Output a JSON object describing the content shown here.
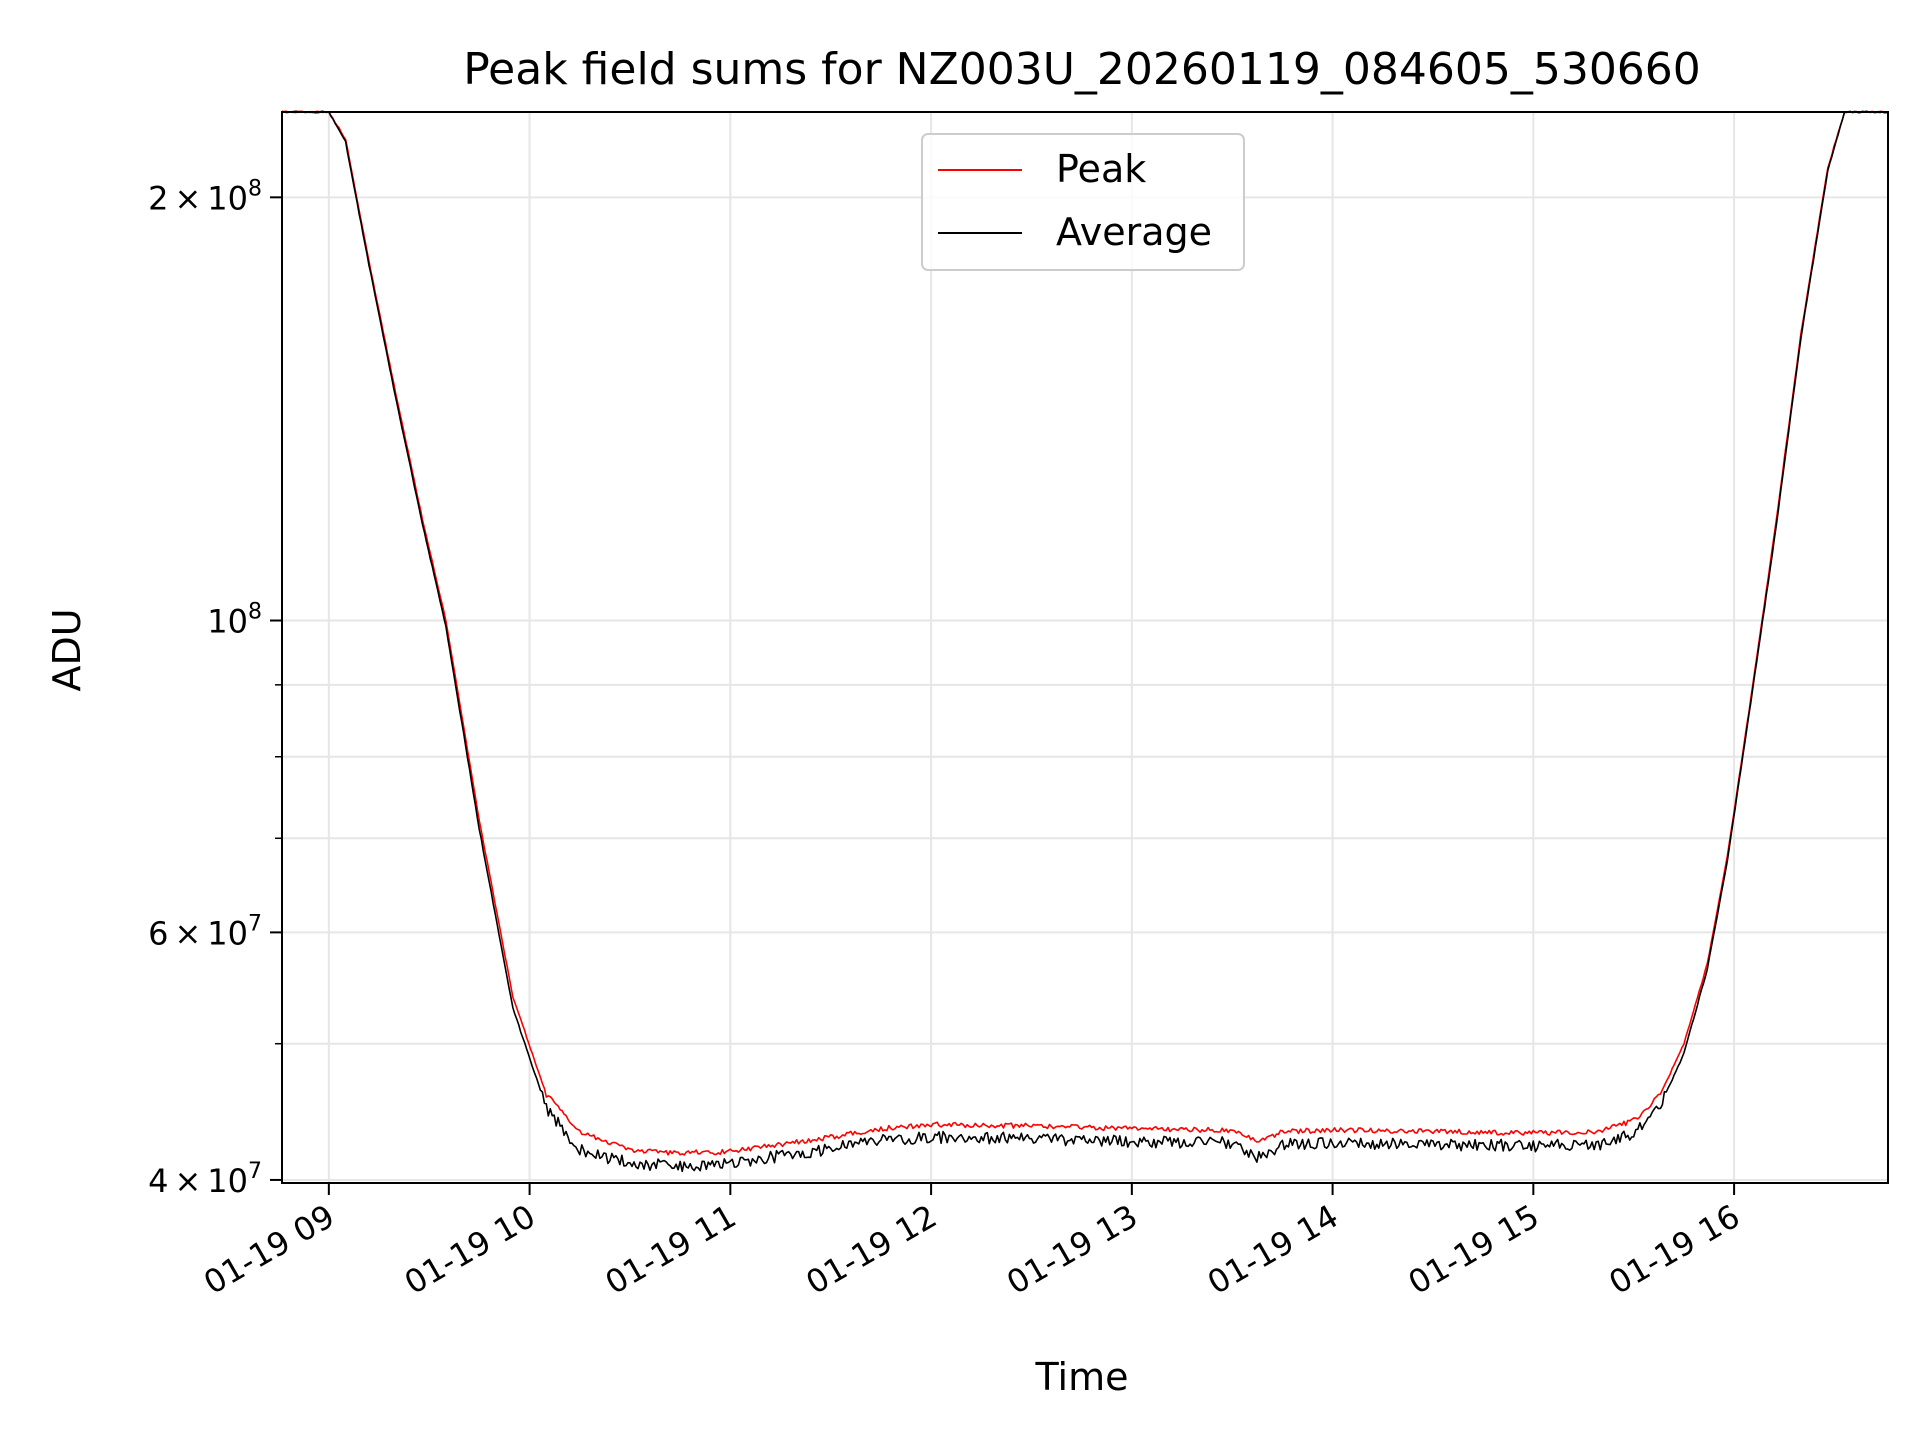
{
  "chart_data": {
    "type": "line",
    "title": "Peak field sums for NZ003U_20260119_084605_530660",
    "xlabel": "Time",
    "ylabel": "ADU",
    "yscale": "log",
    "grid": true,
    "legend_placement": "top-center",
    "xlim": [
      "2026-01-19T08:46",
      "2026-01-19T16:46"
    ],
    "ylim": [
      39800000,
      230000000
    ],
    "x_ticks": [
      {
        "value": "2026-01-19T09:00",
        "label": "01-19 09"
      },
      {
        "value": "2026-01-19T10:00",
        "label": "01-19 10"
      },
      {
        "value": "2026-01-19T11:00",
        "label": "01-19 11"
      },
      {
        "value": "2026-01-19T12:00",
        "label": "01-19 12"
      },
      {
        "value": "2026-01-19T13:00",
        "label": "01-19 13"
      },
      {
        "value": "2026-01-19T14:00",
        "label": "01-19 14"
      },
      {
        "value": "2026-01-19T15:00",
        "label": "01-19 15"
      },
      {
        "value": "2026-01-19T16:00",
        "label": "01-19 16"
      }
    ],
    "y_major_ticks": [
      {
        "value": 40000000,
        "mantissa": "4",
        "exp": "7"
      },
      {
        "value": 60000000,
        "mantissa": "6",
        "exp": "7"
      },
      {
        "value": 100000000,
        "mantissa": "",
        "exp": "8"
      },
      {
        "value": 200000000,
        "mantissa": "2",
        "exp": "8"
      }
    ],
    "y_minor_ticks": [
      50000000,
      70000000,
      80000000,
      90000000
    ],
    "series": [
      {
        "name": "Peak",
        "color": "#ff0000",
        "points": [
          [
            "2026-01-19T08:46",
            230000000
          ],
          [
            "2026-01-19T09:00",
            230000000
          ],
          [
            "2026-01-19T09:05",
            220000000
          ],
          [
            "2026-01-19T09:12",
            180000000
          ],
          [
            "2026-01-19T09:20",
            145000000
          ],
          [
            "2026-01-19T09:28",
            118000000
          ],
          [
            "2026-01-19T09:35",
            100000000
          ],
          [
            "2026-01-19T09:45",
            72000000
          ],
          [
            "2026-01-19T09:55",
            54000000
          ],
          [
            "2026-01-19T10:05",
            46000000
          ],
          [
            "2026-01-19T10:15",
            43300000
          ],
          [
            "2026-01-19T10:30",
            42000000
          ],
          [
            "2026-01-19T10:45",
            41800000
          ],
          [
            "2026-01-19T11:00",
            41900000
          ],
          [
            "2026-01-19T11:15",
            42400000
          ],
          [
            "2026-01-19T11:30",
            42900000
          ],
          [
            "2026-01-19T11:45",
            43500000
          ],
          [
            "2026-01-19T12:00",
            43800000
          ],
          [
            "2026-01-19T12:30",
            43700000
          ],
          [
            "2026-01-19T13:00",
            43500000
          ],
          [
            "2026-01-19T13:30",
            43400000
          ],
          [
            "2026-01-19T13:38",
            42600000
          ],
          [
            "2026-01-19T13:45",
            43300000
          ],
          [
            "2026-01-19T14:00",
            43400000
          ],
          [
            "2026-01-19T14:30",
            43300000
          ],
          [
            "2026-01-19T15:00",
            43200000
          ],
          [
            "2026-01-19T15:20",
            43300000
          ],
          [
            "2026-01-19T15:30",
            44100000
          ],
          [
            "2026-01-19T15:38",
            46000000
          ],
          [
            "2026-01-19T15:45",
            50000000
          ],
          [
            "2026-01-19T15:52",
            57000000
          ],
          [
            "2026-01-19T15:58",
            68000000
          ],
          [
            "2026-01-19T16:05",
            88000000
          ],
          [
            "2026-01-19T16:12",
            115000000
          ],
          [
            "2026-01-19T16:20",
            160000000
          ],
          [
            "2026-01-19T16:28",
            210000000
          ],
          [
            "2026-01-19T16:33",
            230000000
          ],
          [
            "2026-01-19T16:46",
            230000000
          ]
        ]
      },
      {
        "name": "Average",
        "color": "#000000",
        "points": [
          [
            "2026-01-19T08:46",
            230000000
          ],
          [
            "2026-01-19T09:00",
            230000000
          ],
          [
            "2026-01-19T09:05",
            219000000
          ],
          [
            "2026-01-19T09:12",
            179000000
          ],
          [
            "2026-01-19T09:20",
            144000000
          ],
          [
            "2026-01-19T09:28",
            117000000
          ],
          [
            "2026-01-19T09:35",
            99000000
          ],
          [
            "2026-01-19T09:45",
            71000000
          ],
          [
            "2026-01-19T09:55",
            53000000
          ],
          [
            "2026-01-19T10:05",
            45000000
          ],
          [
            "2026-01-19T10:15",
            42000000
          ],
          [
            "2026-01-19T10:30",
            41100000
          ],
          [
            "2026-01-19T10:45",
            40900000
          ],
          [
            "2026-01-19T11:00",
            41100000
          ],
          [
            "2026-01-19T11:15",
            41600000
          ],
          [
            "2026-01-19T11:30",
            42100000
          ],
          [
            "2026-01-19T11:45",
            42700000
          ],
          [
            "2026-01-19T12:00",
            42900000
          ],
          [
            "2026-01-19T12:30",
            42800000
          ],
          [
            "2026-01-19T13:00",
            42600000
          ],
          [
            "2026-01-19T13:30",
            42500000
          ],
          [
            "2026-01-19T13:38",
            41500000
          ],
          [
            "2026-01-19T13:45",
            42400000
          ],
          [
            "2026-01-19T14:00",
            42500000
          ],
          [
            "2026-01-19T14:30",
            42400000
          ],
          [
            "2026-01-19T15:00",
            42300000
          ],
          [
            "2026-01-19T15:20",
            42400000
          ],
          [
            "2026-01-19T15:30",
            43200000
          ],
          [
            "2026-01-19T15:38",
            45200000
          ],
          [
            "2026-01-19T15:45",
            49200000
          ],
          [
            "2026-01-19T15:52",
            56500000
          ],
          [
            "2026-01-19T15:58",
            67500000
          ],
          [
            "2026-01-19T16:05",
            87500000
          ],
          [
            "2026-01-19T16:12",
            114000000
          ],
          [
            "2026-01-19T16:20",
            159000000
          ],
          [
            "2026-01-19T16:28",
            209000000
          ],
          [
            "2026-01-19T16:33",
            230000000
          ],
          [
            "2026-01-19T16:46",
            230000000
          ]
        ]
      }
    ]
  }
}
